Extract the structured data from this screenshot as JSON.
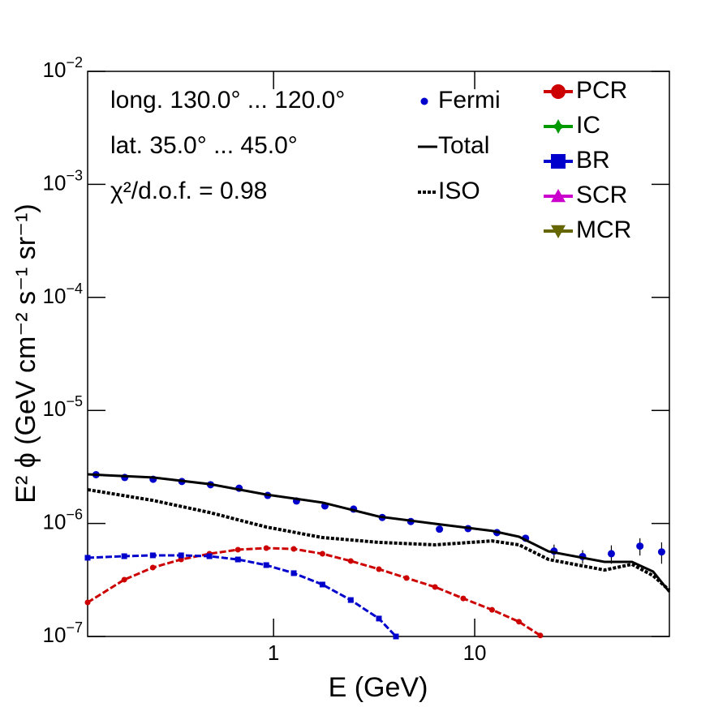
{
  "chart_data": {
    "type": "line",
    "xlabel": "E (GeV)",
    "ylabel": "E² ϕ (GeV cm⁻² s⁻¹ sr⁻¹)",
    "annotations": [
      "long. 130.0° ... 120.0°",
      "lat. 35.0° ... 45.0°",
      "χ²/d.o.f. = 0.98"
    ],
    "xscale": "log",
    "yscale": "log",
    "xlim": [
      0.119,
      92.9
    ],
    "ylim": [
      1e-07,
      0.01
    ],
    "xticks": [
      1,
      10
    ],
    "yticks": [
      {
        "value": 1e-07,
        "label": "10",
        "exponent": "−7"
      },
      {
        "value": 1e-06,
        "label": "10",
        "exponent": "−6"
      },
      {
        "value": 1e-05,
        "label": "10",
        "exponent": "−5"
      },
      {
        "value": 0.0001,
        "label": "10",
        "exponent": "−4"
      },
      {
        "value": 0.001,
        "label": "10",
        "exponent": "−3"
      },
      {
        "value": 0.01,
        "label": "10",
        "exponent": "−2"
      }
    ],
    "series": [
      {
        "name": "Fermi",
        "color": "#0000cc",
        "marker": "circle",
        "x": [
          0.131,
          0.182,
          0.252,
          0.35,
          0.486,
          0.674,
          0.935,
          1.3,
          1.8,
          2.5,
          3.47,
          4.81,
          6.68,
          9.27,
          12.9,
          17.9,
          24.8,
          34.4,
          47.8,
          66.3,
          85
        ],
        "values": [
          2.7e-06,
          2.55e-06,
          2.46e-06,
          2.35e-06,
          2.2e-06,
          2.05e-06,
          1.77e-06,
          1.58e-06,
          1.43e-06,
          1.34e-06,
          1.13e-06,
          1.04e-06,
          8.9e-07,
          9e-07,
          8.3e-07,
          7.4e-07,
          5.7e-07,
          5.1e-07,
          5.4e-07,
          6.3e-07,
          5.6e-07
        ],
        "errors": [
          5e-08,
          5e-08,
          5e-08,
          5e-08,
          5e-08,
          4e-08,
          4e-08,
          4e-08,
          3e-08,
          3e-08,
          3e-08,
          3e-08,
          4e-08,
          5e-08,
          6e-08,
          5e-08,
          8e-08,
          7e-08,
          1e-07,
          1.1e-07,
          1.2e-07
        ]
      },
      {
        "name": "Total",
        "color": "#000000",
        "line": "solid",
        "x": [
          0.119,
          0.251,
          0.48,
          0.92,
          1.75,
          3.34,
          6.35,
          12.2,
          16.6,
          23.3,
          44.2,
          60.5,
          77.1,
          92.9
        ],
        "values": [
          2.72e-06,
          2.55e-06,
          2.23e-06,
          1.8e-06,
          1.53e-06,
          1.15e-06,
          9.93e-07,
          8.6e-07,
          7.63e-07,
          5.66e-07,
          4.57e-07,
          4.57e-07,
          3.75e-07,
          2.48e-07
        ]
      },
      {
        "name": "ISO",
        "color": "#000000",
        "line": "dotted",
        "x": [
          0.119,
          0.251,
          0.48,
          0.92,
          1.75,
          3.34,
          6.35,
          12.2,
          16.6,
          23.3,
          44.2,
          60.5,
          77.1,
          92.9
        ],
        "values": [
          1.99e-06,
          1.6e-06,
          1.25e-06,
          9.3e-07,
          7.5e-07,
          6.8e-07,
          6.47e-07,
          7e-07,
          6.47e-07,
          4.8e-07,
          3.87e-07,
          4.35e-07,
          3.45e-07,
          2.56e-07
        ]
      },
      {
        "name": "PCR",
        "color": "#cc0000",
        "line": "dashed",
        "marker": "circle",
        "x": [
          0.119,
          0.181,
          0.251,
          0.347,
          0.48,
          0.665,
          0.92,
          1.26,
          1.75,
          2.42,
          3.34,
          4.58,
          6.35,
          8.77,
          12.2,
          16.6,
          21.2
        ],
        "values": [
          2e-07,
          3.18e-07,
          4.07e-07,
          4.8e-07,
          5.39e-07,
          5.86e-07,
          6.05e-07,
          5.95e-07,
          5.39e-07,
          4.65e-07,
          3.94e-07,
          3.29e-07,
          2.74e-07,
          2.17e-07,
          1.72e-07,
          1.35e-07,
          1.02e-07
        ]
      },
      {
        "name": "IC",
        "color": "#009900",
        "marker": "star"
      },
      {
        "name": "BR",
        "color": "#0000cc",
        "line": "dashed",
        "marker": "square",
        "x": [
          0.119,
          0.181,
          0.251,
          0.347,
          0.48,
          0.665,
          0.92,
          1.26,
          1.75,
          2.42,
          3.34,
          4.06
        ],
        "values": [
          4.97e-07,
          5.13e-07,
          5.22e-07,
          5.22e-07,
          5.13e-07,
          4.8e-07,
          4.28e-07,
          3.63e-07,
          2.88e-07,
          2.1e-07,
          1.44e-07,
          1e-07
        ]
      },
      {
        "name": "SCR",
        "color": "#cc00cc",
        "marker": "triangle-up"
      },
      {
        "name": "MCR",
        "color": "#666600",
        "marker": "triangle-down"
      }
    ]
  }
}
